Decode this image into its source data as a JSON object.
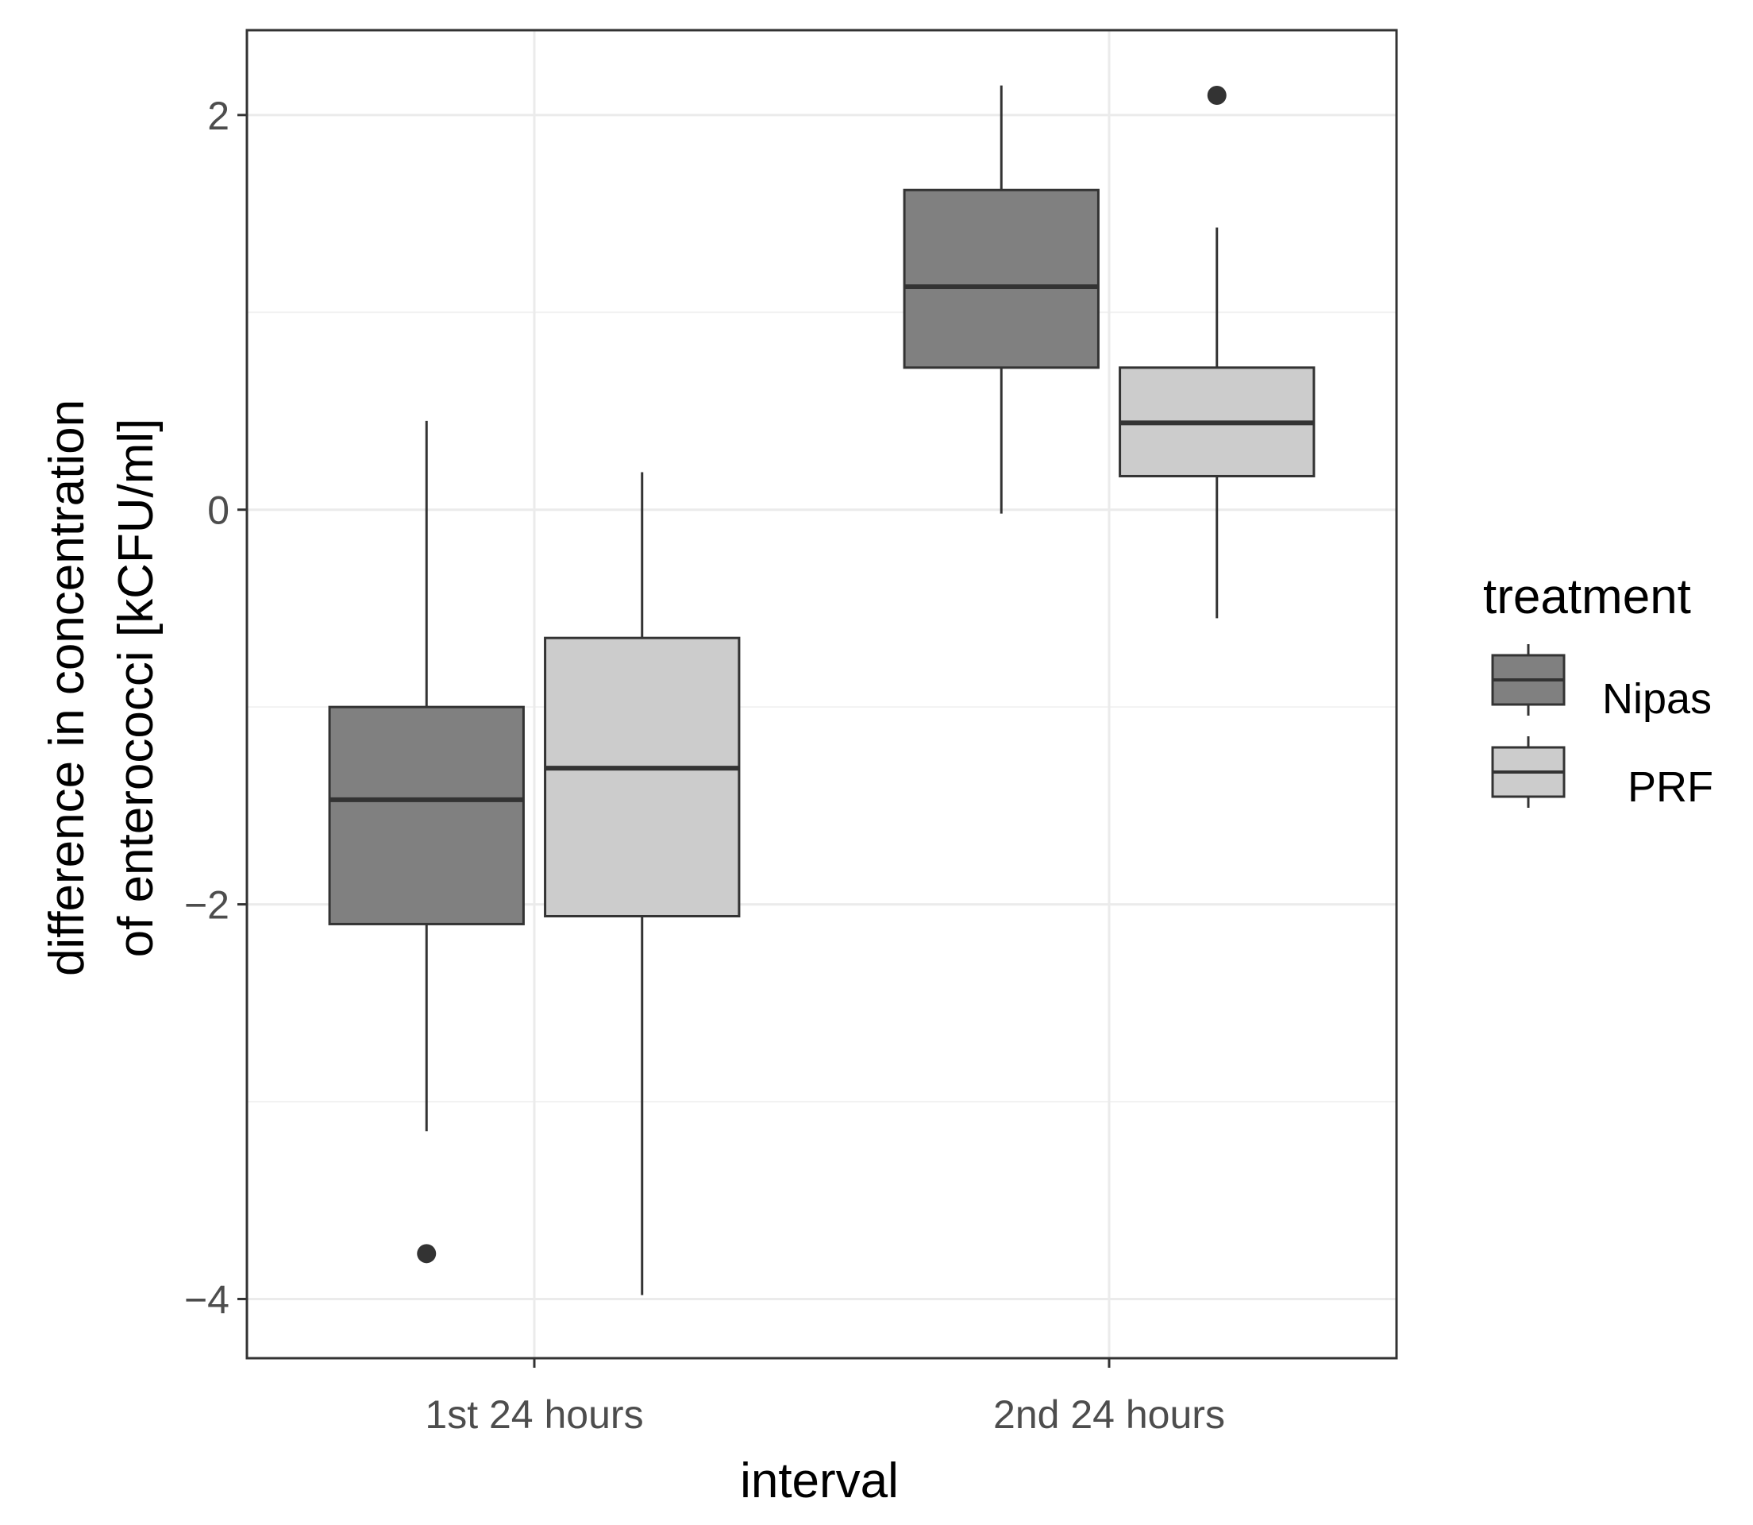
{
  "chart_data": {
    "type": "boxplot",
    "title": "",
    "xlabel": "interval",
    "ylabel_line1": "difference in concentration",
    "ylabel_line2": "of enterococci [kCFU/ml]",
    "categories": [
      "1st 24 hours",
      "2nd 24 hours"
    ],
    "ylim": [
      -4.3,
      2.43
    ],
    "yticks": [
      -4,
      -2,
      0,
      2
    ],
    "ytick_labels": [
      "−4",
      "−2",
      "0",
      "2"
    ],
    "grid": true,
    "legend": {
      "title": "treatment",
      "position": "right",
      "entries": [
        "Nipas",
        "PRF"
      ]
    },
    "series": [
      {
        "name": "Nipas",
        "color": "#808080",
        "boxes": [
          {
            "category": "1st 24 hours",
            "whisker_low": -3.15,
            "q1": -2.1,
            "median": -1.47,
            "q3": -1.0,
            "whisker_high": 0.45,
            "outliers": [
              -3.77
            ]
          },
          {
            "category": "2nd 24 hours",
            "whisker_low": -0.02,
            "q1": 0.72,
            "median": 1.13,
            "q3": 1.62,
            "whisker_high": 2.15,
            "outliers": []
          }
        ]
      },
      {
        "name": "PRF",
        "color": "#cccccc",
        "boxes": [
          {
            "category": "1st 24 hours",
            "whisker_low": -3.98,
            "q1": -2.06,
            "median": -1.31,
            "q3": -0.65,
            "whisker_high": 0.19,
            "outliers": []
          },
          {
            "category": "2nd 24 hours",
            "whisker_low": -0.55,
            "q1": 0.17,
            "median": 0.44,
            "q3": 0.72,
            "whisker_high": 1.43,
            "outliers": [
              2.1
            ]
          }
        ]
      }
    ]
  }
}
